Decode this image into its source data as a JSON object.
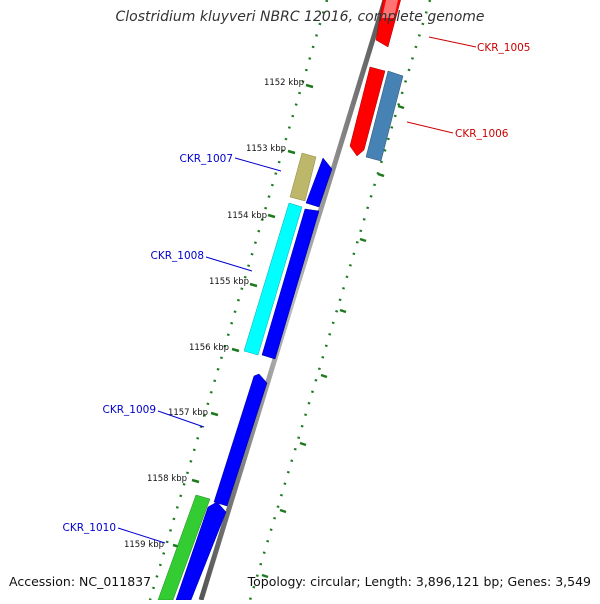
{
  "title": "Clostridium kluyveri NBRC 12016, complete genome",
  "accession": "Accession: NC_011837",
  "summary": "Topology: circular; Length: 3,896,121 bp; Genes: 3,549",
  "ticks": [
    {
      "label": "1152 kbp"
    },
    {
      "label": "1153 kbp"
    },
    {
      "label": "1154 kbp"
    },
    {
      "label": "1155 kbp"
    },
    {
      "label": "1156 kbp"
    },
    {
      "label": "1157 kbp"
    },
    {
      "label": "1158 kbp"
    },
    {
      "label": "1159 kbp"
    }
  ],
  "genes": [
    {
      "label": "CKR_1005",
      "color": "#cc0000"
    },
    {
      "label": "CKR_1006",
      "color": "#cc0000"
    },
    {
      "label": "CKR_1007",
      "color": "#0000cc"
    },
    {
      "label": "CKR_1008",
      "color": "#0000cc"
    },
    {
      "label": "CKR_1009",
      "color": "#0000cc"
    },
    {
      "label": "CKR_1010",
      "color": "#0000cc"
    }
  ],
  "colors": {
    "backbone": "#8c8c8c",
    "tick_dots": "#1e7a1e",
    "red_gene": "#ff0000",
    "steel_gene": "#4682b4",
    "khaki_gene": "#bdb76b",
    "cyan_gene": "#00ffff",
    "blue_gene": "#0000ff",
    "green_gene": "#33cc33"
  }
}
